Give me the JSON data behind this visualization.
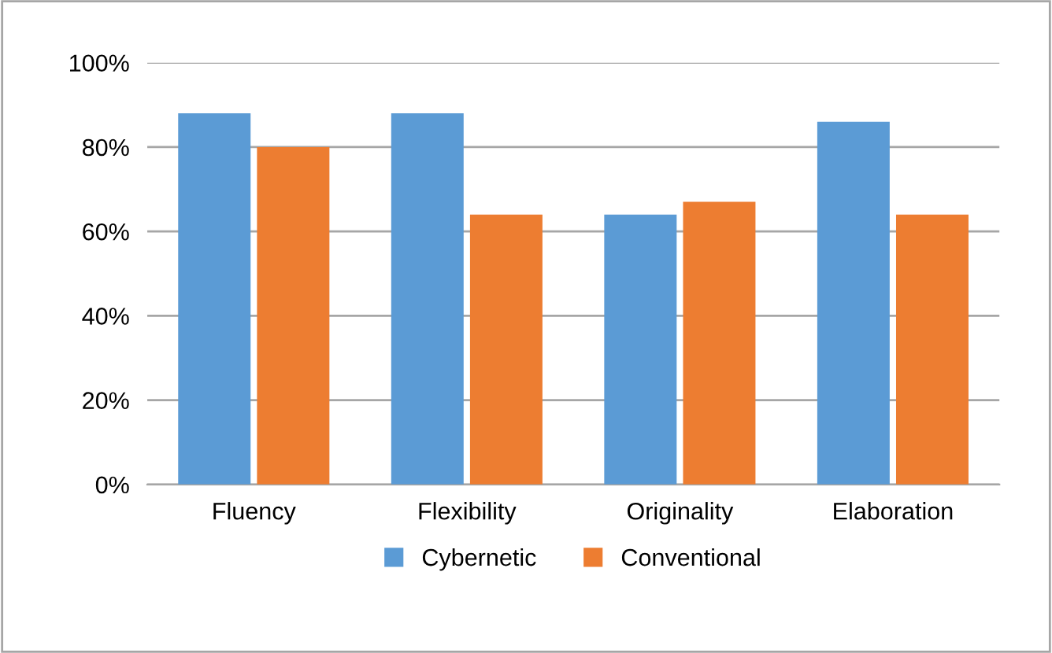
{
  "chart_data": {
    "type": "bar",
    "categories": [
      "Fluency",
      "Flexibility",
      "Originality",
      "Elaboration"
    ],
    "series": [
      {
        "name": "Cybernetic",
        "color": "#5b9bd5",
        "values": [
          88,
          88,
          64,
          86
        ]
      },
      {
        "name": "Conventional",
        "color": "#ed7d31",
        "values": [
          80,
          64,
          67,
          64
        ]
      }
    ],
    "ylim": [
      0,
      100
    ],
    "yticks": [
      {
        "value": 0,
        "label": "0%"
      },
      {
        "value": 20,
        "label": "20%"
      },
      {
        "value": 40,
        "label": "40%"
      },
      {
        "value": 60,
        "label": "60%"
      },
      {
        "value": 80,
        "label": "80%"
      },
      {
        "value": 100,
        "label": "100%"
      }
    ],
    "grid": "y",
    "legend": "bottom"
  }
}
